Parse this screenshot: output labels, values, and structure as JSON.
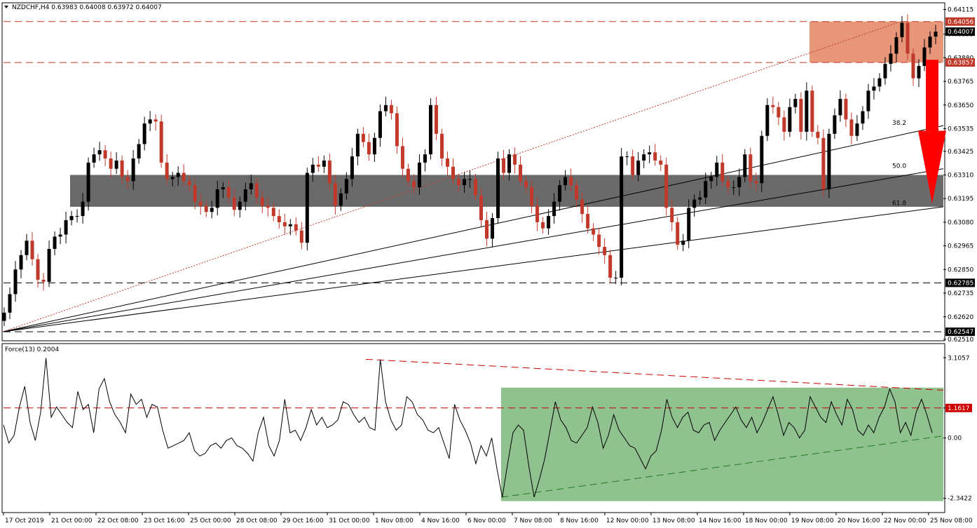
{
  "chart_data": [
    {
      "type": "candlestick",
      "title": "NZDCHF,H4  0.63983 0.64008 0.63972 0.64007",
      "symbol": "NZDCHF,H4",
      "ohlc_readout": "0.63983 0.64008 0.63972 0.64007",
      "ylim": [
        0.6251,
        0.6412
      ],
      "y_ticks": [
        "0.64115",
        "0.63995",
        "0.63880",
        "0.63765",
        "0.63650",
        "0.63535",
        "0.63425",
        "0.63310",
        "0.63195",
        "0.63080",
        "0.62965",
        "0.62850",
        "0.62735",
        "0.62620",
        "0.62510"
      ],
      "x_ticks": [
        "17 Oct 2019",
        "21 Oct 00:00",
        "22 Oct 08:00",
        "23 Oct 16:00",
        "25 Oct 00:00",
        "28 Oct 08:00",
        "29 Oct 16:00",
        "31 Oct 00:00",
        "1 Nov 08:00",
        "4 Nov 16:00",
        "6 Nov 00:00",
        "7 Nov 08:00",
        "8 Nov 16:00",
        "12 Nov 00:00",
        "13 Nov 08:00",
        "14 Nov 16:00",
        "18 Nov 00:00",
        "19 Nov 08:00",
        "20 Nov 16:00",
        "22 Nov 00:00",
        "25 Nov 08:00"
      ],
      "horizontal_levels": [
        {
          "value": 0.64056,
          "label": "0.64056",
          "color": "#c0392b"
        },
        {
          "value": 0.63857,
          "label": "0.63857",
          "color": "#c0392b"
        },
        {
          "value": 0.62785,
          "label": "0.62785",
          "color": "#000000"
        },
        {
          "value": 0.62547,
          "label": "0.62547",
          "color": "#000000"
        }
      ],
      "current_price": {
        "value": 0.64007,
        "label": "0.64007"
      },
      "zones": [
        {
          "name": "resistance",
          "from": 0.63857,
          "to": 0.64056,
          "color": "#e8967a"
        },
        {
          "name": "support",
          "from": 0.63155,
          "to": 0.6331,
          "color": "#6a6a6a"
        }
      ],
      "fibonacci_fan_labels": [
        "38.2",
        "50.0",
        "61.8"
      ],
      "arrow": {
        "direction": "down",
        "color": "#ff0000",
        "from": 0.6387,
        "to": 0.6317
      },
      "colors": {
        "bull": "#000000",
        "bear": "#c0392b",
        "trend": "#c0392b"
      },
      "closes": [
        0.6264,
        0.6273,
        0.6285,
        0.6292,
        0.6299,
        0.629,
        0.628,
        0.6279,
        0.6295,
        0.6301,
        0.6302,
        0.6309,
        0.6311,
        0.6311,
        0.6318,
        0.6337,
        0.6341,
        0.6343,
        0.6339,
        0.6334,
        0.6338,
        0.633,
        0.6328,
        0.6339,
        0.6346,
        0.6356,
        0.6358,
        0.6357,
        0.6337,
        0.6329,
        0.633,
        0.6332,
        0.6328,
        0.6326,
        0.6318,
        0.6316,
        0.6313,
        0.6315,
        0.6324,
        0.6325,
        0.632,
        0.6314,
        0.6318,
        0.6324,
        0.6327,
        0.632,
        0.6316,
        0.6315,
        0.6311,
        0.6308,
        0.6306,
        0.6307,
        0.6304,
        0.6298,
        0.6332,
        0.6336,
        0.6335,
        0.6338,
        0.6327,
        0.6316,
        0.6322,
        0.6329,
        0.634,
        0.6351,
        0.6347,
        0.6341,
        0.6349,
        0.6362,
        0.6365,
        0.6361,
        0.6345,
        0.6334,
        0.6328,
        0.6325,
        0.6337,
        0.6341,
        0.6365,
        0.6351,
        0.6339,
        0.6335,
        0.6329,
        0.6326,
        0.6329,
        0.6329,
        0.6321,
        0.6309,
        0.63,
        0.631,
        0.6339,
        0.6332,
        0.6341,
        0.6336,
        0.6328,
        0.6325,
        0.6316,
        0.6308,
        0.6305,
        0.6311,
        0.6318,
        0.6326,
        0.633,
        0.6326,
        0.6319,
        0.6312,
        0.6305,
        0.6302,
        0.6296,
        0.6292,
        0.6281,
        0.6281,
        0.634,
        0.634,
        0.6331,
        0.6338,
        0.6341,
        0.6342,
        0.6338,
        0.6336,
        0.6315,
        0.6308,
        0.6297,
        0.6299,
        0.6315,
        0.6319,
        0.632,
        0.6328,
        0.633,
        0.6337,
        0.6328,
        0.6325,
        0.6325,
        0.633,
        0.6341,
        0.6328,
        0.6327,
        0.635,
        0.6365,
        0.6364,
        0.6359,
        0.6352,
        0.6364,
        0.6368,
        0.6352,
        0.6372,
        0.6352,
        0.6349,
        0.6324,
        0.6351,
        0.636,
        0.6368,
        0.6358,
        0.635,
        0.6356,
        0.6362,
        0.6372,
        0.6374,
        0.6378,
        0.6385,
        0.639,
        0.6398,
        0.6405,
        0.639,
        0.6378,
        0.6384,
        0.6393,
        0.63983,
        0.64007
      ],
      "series": [
        {
          "name": "Force(13) 0.2004"
        }
      ]
    },
    {
      "type": "line",
      "title": "Force(13) 0.2004",
      "ylim": [
        -2.65,
        3.25
      ],
      "y_ticks": [
        "3.1057",
        "1.1617",
        "0.00",
        "-2.3422"
      ],
      "level": {
        "value": 1.1617,
        "label": "1.1617",
        "color": "#cc0000"
      },
      "zone": {
        "color": "#8fc28f"
      },
      "values": [
        0.5,
        -0.2,
        0.1,
        1.2,
        2.0,
        0.6,
        -0.1,
        1.0,
        3.1,
        0.8,
        1.2,
        0.9,
        0.6,
        0.4,
        1.8,
        1.1,
        1.3,
        0.2,
        1.9,
        2.3,
        1.4,
        0.9,
        0.6,
        0.2,
        1.7,
        1.3,
        1.5,
        0.8,
        1.3,
        1.2,
        0.3,
        -0.4,
        -0.3,
        -0.2,
        -0.1,
        0.2,
        -0.5,
        -0.7,
        -0.6,
        -0.3,
        -0.2,
        -0.4,
        -0.1,
        0.0,
        -0.3,
        -0.4,
        -0.6,
        -0.9,
        0.2,
        0.8,
        -0.3,
        -0.7,
        -0.1,
        1.5,
        0.2,
        0.3,
        -0.1,
        0.4,
        1.1,
        0.5,
        0.8,
        0.4,
        0.5,
        0.7,
        1.4,
        1.3,
        0.9,
        0.6,
        0.8,
        0.4,
        0.3,
        3.05,
        1.4,
        0.7,
        0.3,
        0.5,
        1.6,
        1.4,
        0.9,
        0.7,
        0.3,
        0.2,
        0.4,
        -0.2,
        -0.8,
        1.3,
        0.7,
        0.3,
        -0.2,
        -1.0,
        -0.3,
        -0.7,
        0.0,
        -1.2,
        -2.3,
        -1.0,
        0.2,
        0.5,
        0.3,
        -1.1,
        -2.3,
        -1.6,
        -0.8,
        0.3,
        1.4,
        0.7,
        0.4,
        -0.1,
        -0.2,
        0.1,
        0.4,
        1.2,
        0.6,
        -0.4,
        0.1,
        0.9,
        0.3,
        0.0,
        -0.3,
        -0.4,
        -0.8,
        -1.2,
        -0.7,
        -0.5,
        0.3,
        1.5,
        0.8,
        0.4,
        0.8,
        1.0,
        0.3,
        0.2,
        0.5,
        0.6,
        -0.1,
        0.3,
        0.6,
        0.9,
        1.2,
        0.7,
        0.4,
        0.8,
        0.2,
        0.6,
        1.1,
        1.6,
        0.9,
        0.1,
        0.6,
        0.4,
        0.0,
        0.3,
        1.6,
        1.2,
        0.8,
        0.6,
        1.4,
        0.9,
        0.5,
        1.5,
        1.1,
        0.3,
        0.1,
        0.5,
        0.2,
        0.8,
        1.2,
        1.9,
        1.4,
        0.2,
        0.6,
        0.1,
        1.0,
        1.5,
        0.9,
        0.2
      ]
    }
  ]
}
